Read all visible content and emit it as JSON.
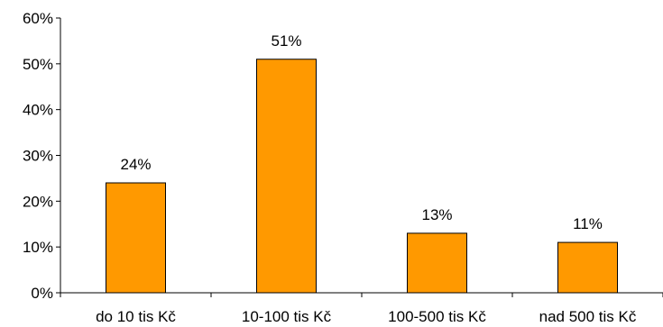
{
  "chart_data": {
    "type": "bar",
    "categories": [
      "do 10 tis Kč",
      "10-100 tis Kč",
      "100-500 tis Kč",
      "nad 500 tis Kč"
    ],
    "values": [
      24,
      51,
      13,
      11
    ],
    "data_labels": [
      "24%",
      "51%",
      "13%",
      "11%"
    ],
    "ylim": [
      0,
      60
    ],
    "yticks": [
      0,
      10,
      20,
      30,
      40,
      50,
      60
    ],
    "ytick_labels": [
      "0%",
      "10%",
      "20%",
      "30%",
      "40%",
      "50%",
      "60%"
    ],
    "grid": false,
    "legend": "none",
    "bar_color": "#FF9900",
    "bar_edge_color": "#000000"
  }
}
